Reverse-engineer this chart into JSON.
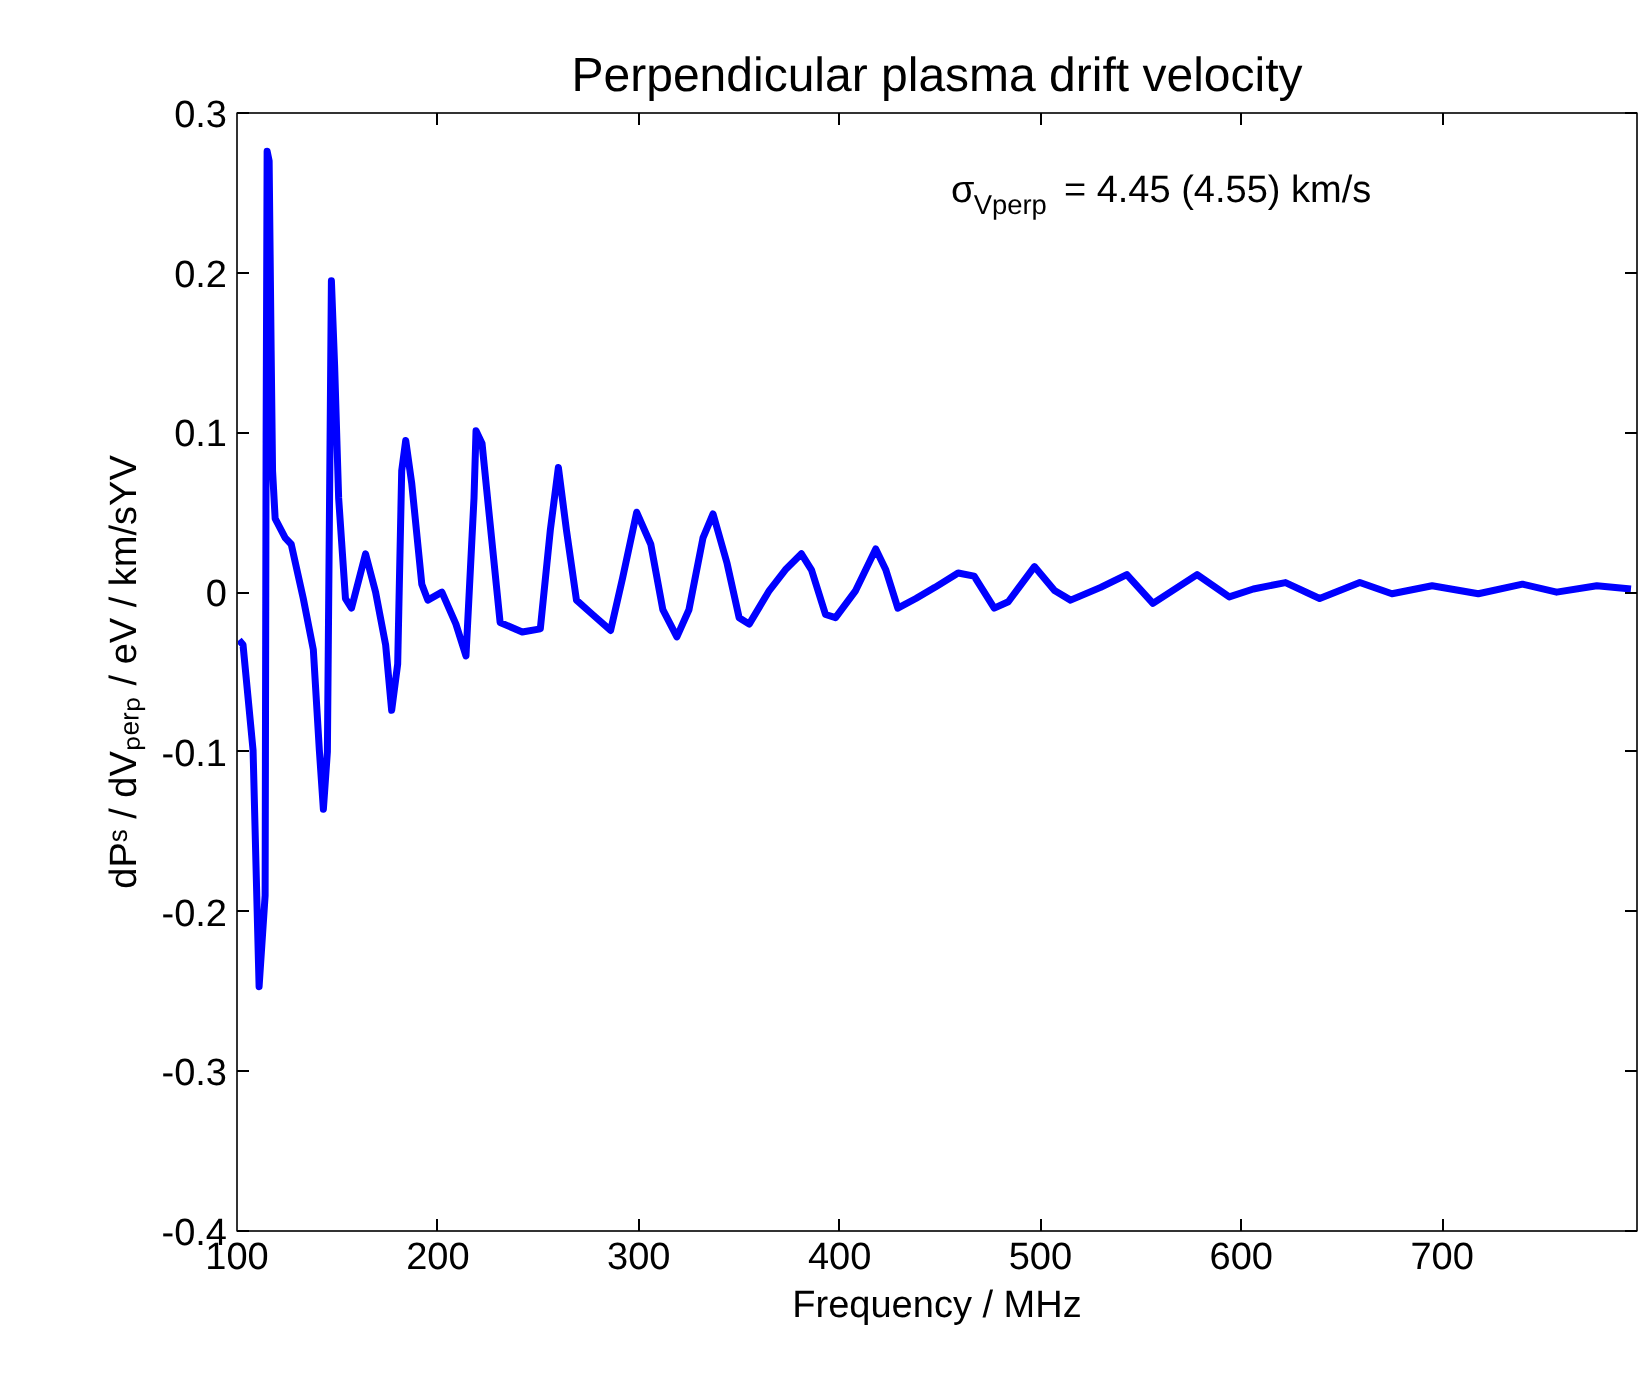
{
  "chart_data": {
    "type": "line",
    "title": "Perpendicular plasma drift velocity",
    "xlabel": "Frequency / MHz",
    "ylabel": "dPˢ / dVₚₑᵣₚ / eV / km/sYV",
    "annotations": [
      "σ$_{Vperp}$ = 4.45 (4.55) km/s"
    ],
    "x": [
      101,
      103,
      108,
      111,
      114,
      114.5,
      115,
      116,
      117,
      117.7,
      119,
      124,
      127,
      133,
      138,
      141,
      143,
      145,
      146,
      147,
      148.6,
      150.6,
      154,
      157,
      164,
      169,
      174,
      177,
      180,
      182,
      184,
      187,
      192,
      195,
      202,
      209,
      214,
      218,
      219,
      222,
      226,
      231,
      242,
      251,
      256,
      260,
      264,
      269,
      277,
      286,
      292,
      299,
      306,
      312,
      319,
      325,
      332,
      337,
      344,
      350,
      355,
      365,
      373,
      381,
      386,
      393,
      398,
      408,
      418,
      423,
      429,
      438,
      447.5,
      459,
      467,
      477,
      484,
      497,
      507,
      515,
      530,
      543,
      556,
      578,
      594,
      606,
      622,
      639,
      659,
      675,
      695,
      718,
      740,
      757,
      777,
      794
    ],
    "series": [
      {
        "color": "#0000ff",
        "values": [
          -0.03,
          -0.033,
          -0.099,
          -0.247,
          -0.19,
          0.1,
          0.276,
          0.27,
          0.151,
          0.076,
          0.046,
          0.034,
          0.03,
          -0.004,
          -0.036,
          -0.099,
          -0.136,
          -0.1,
          0.046,
          0.195,
          0.142,
          0.059,
          -0.004,
          -0.01,
          0.024,
          0.0,
          -0.033,
          -0.074,
          -0.045,
          0.076,
          0.095,
          0.068,
          0.005,
          -0.005,
          0.0,
          -0.02,
          -0.04,
          0.059,
          0.101,
          0.093,
          0.043,
          -0.019,
          -0.025,
          -0.023,
          0.039,
          0.078,
          0.039,
          -0.005,
          -0.014,
          -0.024,
          0.009,
          0.05,
          0.03,
          -0.011,
          -0.028,
          -0.011,
          0.034,
          0.049,
          0.018,
          -0.016,
          -0.02,
          0.001,
          0.014,
          0.024,
          0.014,
          -0.014,
          -0.016,
          0.001,
          0.027,
          0.014,
          -0.01,
          -0.004,
          0.003,
          0.012,
          0.01,
          -0.01,
          -0.006,
          0.016,
          0.001,
          -0.005,
          0.003,
          0.011,
          -0.007,
          0.011,
          -0.003,
          0.002,
          0.006,
          -0.004,
          0.006,
          -0.001,
          0.004,
          -0.001,
          0.005,
          0.0,
          0.004,
          0.002
        ]
      }
    ],
    "xlim": [
      100,
      797
    ],
    "ylim": [
      -0.4,
      0.3
    ],
    "xticks": [
      100,
      200,
      300,
      400,
      500,
      600,
      700
    ],
    "yticks": [
      -0.4,
      -0.3,
      -0.2,
      -0.1,
      0,
      0.1,
      0.2,
      0.3
    ],
    "grid": false,
    "line_style": "solid",
    "marker": "none"
  }
}
